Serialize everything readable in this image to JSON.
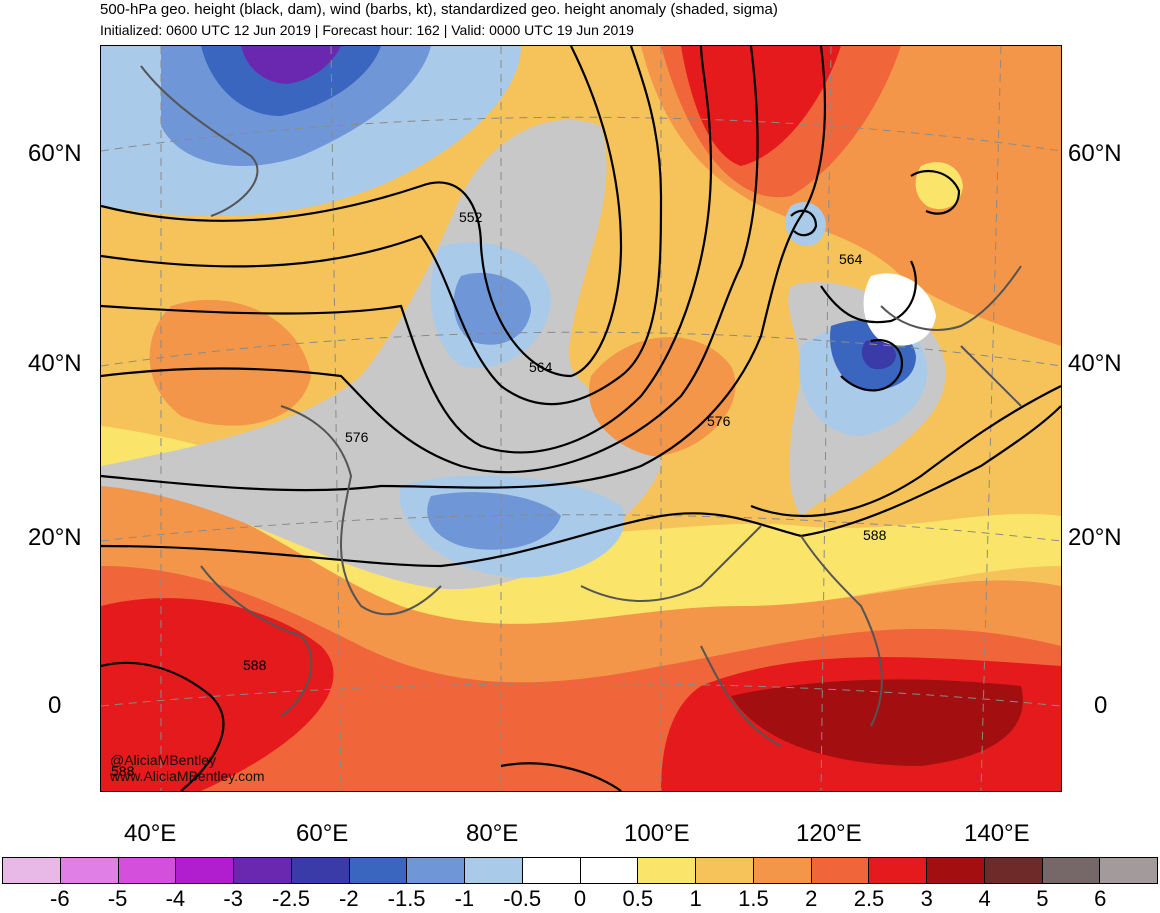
{
  "header": {
    "title": "500-hPa geo. height (black, dam), wind (barbs, kt), standardized geo. height anomaly (shaded, sigma)",
    "subtitle": "Initialized: 0600 UTC 12 Jun 2019 | Forecast hour: 162 | Valid: 0000 UTC 19 Jun 2019"
  },
  "map": {
    "lat_labels_left": [
      "60°N",
      "40°N",
      "20°N",
      "0"
    ],
    "lat_labels_right": [
      "60°N",
      "40°N",
      "20°N",
      "0"
    ],
    "lon_labels": [
      "40°E",
      "60°E",
      "80°E",
      "100°E",
      "120°E",
      "140°E"
    ],
    "contour_labels": [
      "552",
      "564",
      "576",
      "576",
      "564",
      "588",
      "588",
      "588"
    ],
    "credits": [
      "@AliciaMBentley",
      "www.AliciaMBentley.com"
    ]
  },
  "colorbar": {
    "colors": [
      "#e8b8e6",
      "#e07fe6",
      "#d44fdc",
      "#b01ed0",
      "#6a28b0",
      "#3a3aa8",
      "#3a66c0",
      "#6f96d6",
      "#a9cae8",
      "#ffffff",
      "#ffffff",
      "#fbe46a",
      "#f6c35a",
      "#f3964a",
      "#f0663a",
      "#e41a1c",
      "#a30f10",
      "#6e2a28",
      "#766868",
      "#a39b9b"
    ],
    "ticks": [
      "-6",
      "-5",
      "-4",
      "-3",
      "-2.5",
      "-2",
      "-1.5",
      "-1",
      "-0.5",
      "0",
      "0.5",
      "1",
      "1.5",
      "2",
      "2.5",
      "3",
      "4",
      "5",
      "6"
    ]
  }
}
